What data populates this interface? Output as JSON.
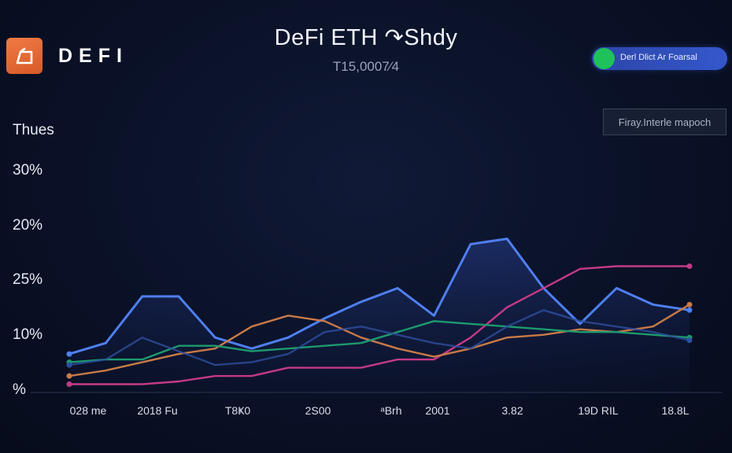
{
  "brand": {
    "name": "DEFI",
    "icon": "defi-logo-icon",
    "icon_color": "#e8672f"
  },
  "header": {
    "title": "DeFi ETH ↷Shdy",
    "subtitle": "T15,0007⁄4"
  },
  "toggle": {
    "label": "Derl Dlict Ar Foarsal",
    "state": "on",
    "knob_color": "#1fc25a",
    "track_color": "#3557cc"
  },
  "legend": {
    "label": "Firay.Interle mapoch"
  },
  "chart_data": {
    "type": "line",
    "ylabel": "Thues",
    "yticks": [
      "30%",
      "20%",
      "25%",
      "10%",
      "%"
    ],
    "xticks": [
      "028 me",
      "2018 Fu",
      "T8Ҝ0",
      "2Ѕ00",
      "ᵃBrh",
      "2001",
      "3.82",
      "19D RIL",
      "18.8L"
    ],
    "x": [
      0,
      0.5,
      1,
      1.5,
      2,
      2.5,
      3,
      3.5,
      4,
      4.5,
      5,
      5.5,
      6,
      6.5,
      7,
      7.5,
      8,
      8.5
    ],
    "ylim": [
      0,
      100
    ],
    "grid": false,
    "series": [
      {
        "color": "#4f7ff0",
        "area": true,
        "values": [
          14,
          18,
          35,
          35,
          20,
          16,
          20,
          27,
          33,
          38,
          28,
          54,
          56,
          38,
          25,
          38,
          32,
          30
        ]
      },
      {
        "color": "#c43a86",
        "area": false,
        "values": [
          3,
          3,
          3,
          4,
          6,
          6,
          9,
          9,
          9,
          12,
          12,
          20,
          31,
          38,
          45,
          46,
          46,
          46
        ]
      },
      {
        "color": "#c97a46",
        "area": false,
        "values": [
          6,
          8,
          11,
          14,
          16,
          24,
          28,
          26,
          20,
          16,
          13,
          16,
          20,
          21,
          23,
          22,
          24,
          32
        ]
      },
      {
        "color": "#1d9a6e",
        "area": false,
        "values": [
          11,
          12,
          12,
          17,
          17,
          15,
          16,
          17,
          18,
          22,
          26,
          25,
          24,
          23,
          22,
          22,
          21,
          20
        ]
      },
      {
        "color": "#2e4f9f",
        "area": false,
        "values": [
          10,
          12,
          20,
          15,
          10,
          11,
          14,
          22,
          24,
          21,
          18,
          16,
          24,
          30,
          26,
          24,
          22,
          19
        ]
      }
    ]
  }
}
